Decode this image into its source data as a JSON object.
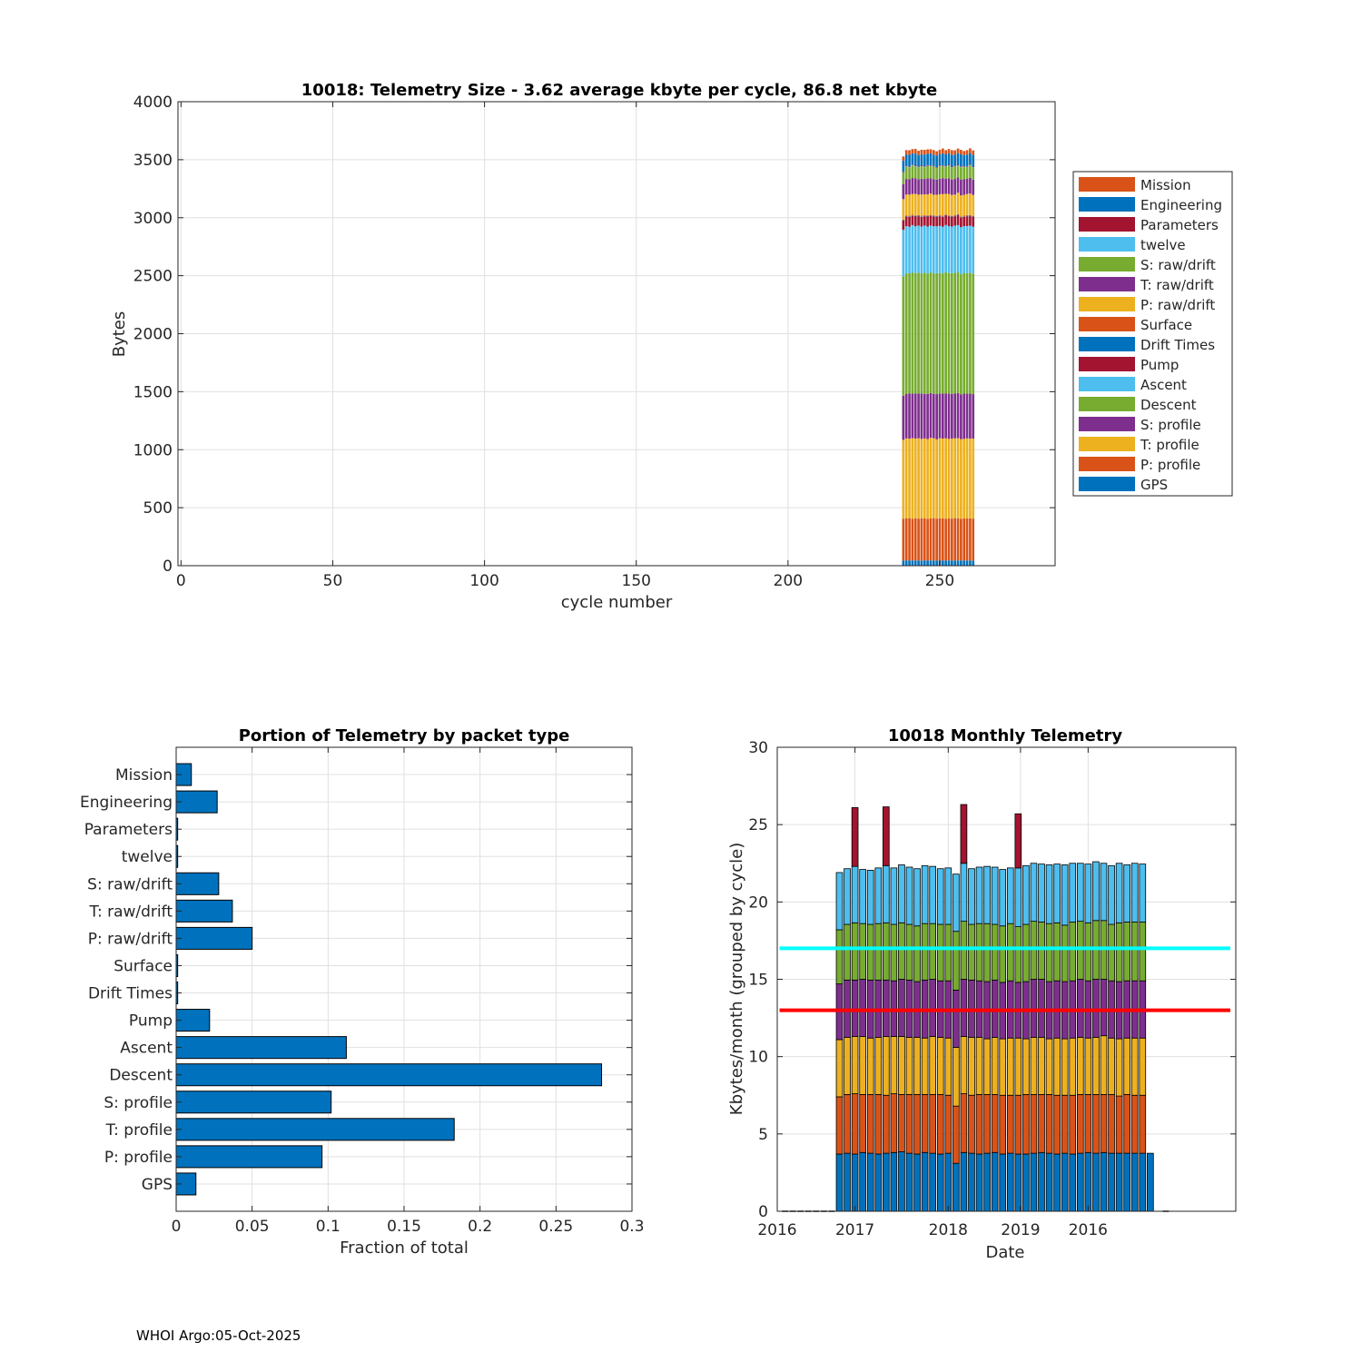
{
  "colors": {
    "mission": "#D95319",
    "engineering": "#0072BD",
    "parameters": "#A2142F",
    "twelve": "#4DBEEE",
    "s_raw_drift": "#77AC30",
    "t_raw_drift": "#7E2F8E",
    "p_raw_drift": "#EDB120",
    "surface": "#D95319",
    "drift_times": "#0072BD",
    "pump": "#A2142F",
    "ascent": "#4DBEEE",
    "descent": "#77AC30",
    "s_profile": "#7E2F8E",
    "t_profile": "#EDB120",
    "p_profile": "#D95319",
    "gps": "#0072BD",
    "bar_blue": "#0072BD",
    "line_cyan": "#00FFFF",
    "line_red": "#FF0000"
  },
  "chart_data": [
    {
      "type": "bar",
      "stacked": true,
      "title": "10018: Telemetry Size - 3.62 average kbyte per cycle,   86.8 net kbyte",
      "xlabel": "cycle number",
      "ylabel": "Bytes",
      "xlim": [
        -1,
        288
      ],
      "ylim": [
        0,
        4000
      ],
      "xticks": [
        0,
        50,
        100,
        150,
        200,
        250
      ],
      "yticks": [
        0,
        500,
        1000,
        1500,
        2000,
        2500,
        3000,
        3500,
        4000
      ],
      "grid": true,
      "legend_position": "right",
      "x": [
        238,
        239,
        240,
        241,
        242,
        243,
        244,
        245,
        246,
        247,
        248,
        249,
        250,
        251,
        252,
        253,
        254,
        255,
        256,
        257,
        258,
        259,
        260,
        261
      ],
      "series_order": [
        "GPS",
        "P: profile",
        "T: profile",
        "S: profile",
        "Descent",
        "Ascent",
        "Pump",
        "Drift Times",
        "Surface",
        "P: raw/drift",
        "T: raw/drift",
        "S: raw/drift",
        "twelve",
        "Parameters",
        "Engineering",
        "Mission"
      ],
      "series": [
        {
          "name": "GPS",
          "values": [
            45,
            45,
            45,
            45,
            45,
            45,
            45,
            45,
            45,
            45,
            45,
            45,
            45,
            45,
            45,
            45,
            45,
            45,
            45,
            45,
            45,
            45,
            45,
            45
          ]
        },
        {
          "name": "P: profile",
          "values": [
            360,
            362,
            365,
            360,
            363,
            361,
            364,
            362,
            360,
            363,
            365,
            361,
            362,
            364,
            360,
            363,
            361,
            365,
            362,
            360,
            364,
            362,
            363,
            361
          ]
        },
        {
          "name": "T: profile",
          "values": [
            680,
            690,
            685,
            695,
            688,
            692,
            684,
            690,
            686,
            694,
            689,
            683,
            691,
            687,
            693,
            685,
            690,
            688,
            692,
            686,
            684,
            690,
            687,
            689
          ]
        },
        {
          "name": "S: profile",
          "values": [
            380,
            385,
            390,
            383,
            388,
            386,
            392,
            384,
            389,
            387,
            383,
            390,
            385,
            388,
            386,
            391,
            384,
            387,
            389,
            385,
            390,
            386,
            388,
            384
          ]
        },
        {
          "name": "Descent",
          "values": [
            1030,
            1040,
            1035,
            1045,
            1038,
            1042,
            1036,
            1044,
            1039,
            1041,
            1037,
            1043,
            1040,
            1035,
            1046,
            1038,
            1042,
            1039,
            1044,
            1036,
            1041,
            1038,
            1043,
            1040
          ]
        },
        {
          "name": "Ascent",
          "values": [
            400,
            405,
            402,
            408,
            404,
            406,
            403,
            407,
            405,
            402,
            408,
            404,
            406,
            403,
            407,
            405,
            402,
            408,
            404,
            406,
            403,
            407,
            405,
            404
          ]
        },
        {
          "name": "Pump",
          "values": [
            80,
            82,
            85,
            80,
            84,
            81,
            83,
            80,
            86,
            82,
            84,
            80,
            83,
            85,
            81,
            84,
            82,
            80,
            85,
            83,
            81,
            84,
            82,
            83
          ]
        },
        {
          "name": "Drift Times",
          "values": [
            4,
            4,
            4,
            4,
            4,
            4,
            4,
            4,
            4,
            4,
            4,
            4,
            4,
            4,
            4,
            4,
            4,
            4,
            4,
            4,
            4,
            4,
            4,
            4
          ]
        },
        {
          "name": "Surface",
          "values": [
            6,
            6,
            6,
            6,
            6,
            6,
            6,
            6,
            6,
            6,
            6,
            6,
            6,
            6,
            6,
            6,
            6,
            6,
            6,
            6,
            6,
            6,
            6,
            6
          ]
        },
        {
          "name": "P: raw/drift",
          "values": [
            175,
            180,
            182,
            178,
            185,
            176,
            183,
            179,
            181,
            184,
            177,
            182,
            180,
            186,
            178,
            183,
            180,
            177,
            184,
            181,
            179,
            182,
            185,
            180
          ]
        },
        {
          "name": "T: raw/drift",
          "values": [
            130,
            135,
            132,
            138,
            134,
            131,
            136,
            133,
            137,
            132,
            135,
            130,
            134,
            138,
            131,
            136,
            133,
            135,
            132,
            137,
            134,
            131,
            136,
            133
          ]
        },
        {
          "name": "S: raw/drift",
          "values": [
            100,
            105,
            103,
            108,
            102,
            106,
            104,
            101,
            107,
            103,
            105,
            100,
            106,
            104,
            102,
            108,
            103,
            105,
            101,
            106,
            104,
            102,
            107,
            104
          ]
        },
        {
          "name": "twelve",
          "values": [
            3,
            3,
            3,
            3,
            3,
            3,
            3,
            3,
            3,
            3,
            3,
            3,
            3,
            3,
            3,
            3,
            3,
            3,
            3,
            3,
            3,
            3,
            3,
            3
          ]
        },
        {
          "name": "Parameters",
          "values": [
            5,
            5,
            5,
            5,
            5,
            5,
            5,
            5,
            5,
            5,
            5,
            5,
            5,
            5,
            5,
            5,
            5,
            5,
            5,
            5,
            5,
            5,
            5,
            5
          ]
        },
        {
          "name": "Engineering",
          "values": [
            95,
            98,
            100,
            97,
            102,
            96,
            99,
            101,
            98,
            103,
            97,
            100,
            96,
            102,
            99,
            98,
            101,
            97,
            100,
            103,
            96,
            99,
            98,
            100
          ]
        },
        {
          "name": "Mission",
          "values": [
            35,
            38,
            40,
            36,
            42,
            37,
            39,
            41,
            38,
            36,
            40,
            37,
            39,
            42,
            36,
            38,
            41,
            37,
            40,
            39,
            36,
            38,
            41,
            39
          ]
        }
      ],
      "legend": [
        "Mission",
        "Engineering",
        "Parameters",
        "twelve",
        "S: raw/drift",
        "T: raw/drift",
        "P: raw/drift",
        "Surface",
        "Drift Times",
        "Pump",
        "Ascent",
        "Descent",
        "S: profile",
        "T: profile",
        "P: profile",
        "GPS"
      ]
    },
    {
      "type": "bar",
      "orientation": "horizontal",
      "title": "Portion of Telemetry by packet type",
      "xlabel": "Fraction of total",
      "ylabel": "",
      "xlim": [
        0,
        0.3
      ],
      "xticks": [
        0,
        0.05,
        0.1,
        0.15,
        0.2,
        0.25,
        0.3
      ],
      "xtick_labels": [
        "0",
        "0.05",
        "0.1",
        "0.15",
        "0.2",
        "0.25",
        "0.3"
      ],
      "grid": true,
      "categories": [
        "Mission",
        "Engineering",
        "Parameters",
        "twelve",
        "S: raw/drift",
        "T: raw/drift",
        "P: raw/drift",
        "Surface",
        "Drift Times",
        "Pump",
        "Ascent",
        "Descent",
        "S: profile",
        "T: profile",
        "P: profile",
        "GPS"
      ],
      "values": [
        0.01,
        0.027,
        0.001,
        0.001,
        0.028,
        0.037,
        0.05,
        0.001,
        0.001,
        0.022,
        0.112,
        0.28,
        0.102,
        0.183,
        0.096,
        0.013
      ]
    },
    {
      "type": "bar",
      "stacked": true,
      "title": "10018 Monthly Telemetry",
      "xlabel": "Date",
      "ylabel": "Kbytes/month (grouped by cycle)",
      "ylim": [
        0,
        30
      ],
      "yticks": [
        0,
        5,
        10,
        15,
        20,
        25,
        30
      ],
      "xlim": [
        0,
        59
      ],
      "xticks": [
        0,
        10,
        22,
        31,
        40,
        50
      ],
      "xtick_labels": [
        "2016",
        "2017",
        "2018",
        "2019",
        "2016"
      ],
      "xtick_label_positions": [
        0,
        10,
        22,
        31.3,
        40
      ],
      "grid": true,
      "reference_lines": [
        {
          "name": "cyan",
          "value": 17
        },
        {
          "name": "red",
          "value": 13
        }
      ],
      "zero_bars": [
        1,
        2,
        3,
        4,
        5,
        6,
        7,
        50
      ],
      "x": [
        8,
        9,
        10,
        11,
        12,
        13,
        14,
        15,
        16,
        17,
        18,
        19,
        20,
        21,
        22,
        23,
        24,
        25,
        26,
        27,
        28,
        29,
        30,
        31,
        32,
        33,
        34,
        35,
        36,
        37,
        38,
        39,
        40,
        41,
        42,
        43,
        44,
        45,
        46,
        47,
        48
      ],
      "series_order": [
        "GPS",
        "P: profile",
        "T: profile",
        "S: profile",
        "Descent",
        "Ascent",
        "Pump"
      ],
      "series": [
        {
          "name": "GPS",
          "values": [
            3.7,
            3.75,
            3.7,
            3.8,
            3.75,
            3.7,
            3.75,
            3.8,
            3.85,
            3.75,
            3.7,
            3.8,
            3.75,
            3.7,
            3.75,
            3.1,
            3.8,
            3.75,
            3.7,
            3.75,
            3.8,
            3.7,
            3.75,
            3.7,
            3.7,
            3.75,
            3.8,
            3.75,
            3.7,
            3.75,
            3.7,
            3.75,
            3.8,
            3.75,
            3.8,
            3.75,
            3.75,
            3.75,
            3.75,
            3.75,
            3.75
          ]
        },
        {
          "name": "P: profile",
          "values": [
            3.7,
            3.8,
            3.9,
            3.75,
            3.8,
            3.85,
            3.75,
            3.8,
            3.7,
            3.8,
            3.85,
            3.75,
            3.8,
            3.85,
            3.75,
            3.7,
            3.8,
            3.75,
            3.85,
            3.8,
            3.75,
            3.8,
            3.75,
            3.8,
            3.85,
            3.8,
            3.75,
            3.8,
            3.8,
            3.75,
            3.8,
            3.8,
            3.75,
            3.8,
            3.75,
            3.8,
            3.7,
            3.8,
            3.75,
            3.75,
            0
          ]
        },
        {
          "name": "T: profile",
          "values": [
            3.7,
            3.7,
            3.7,
            3.75,
            3.65,
            3.7,
            3.8,
            3.7,
            3.75,
            3.7,
            3.7,
            3.65,
            3.75,
            3.7,
            3.7,
            3.8,
            3.7,
            3.75,
            3.7,
            3.6,
            3.7,
            3.65,
            3.7,
            3.7,
            3.6,
            3.7,
            3.7,
            3.6,
            3.7,
            3.65,
            3.7,
            3.7,
            3.65,
            3.7,
            3.8,
            3.65,
            3.7,
            3.65,
            3.7,
            3.7,
            0
          ]
        },
        {
          "name": "S: profile",
          "values": [
            3.6,
            3.7,
            3.65,
            3.7,
            3.75,
            3.7,
            3.65,
            3.6,
            3.7,
            3.7,
            3.6,
            3.75,
            3.7,
            3.65,
            3.7,
            3.7,
            3.7,
            3.7,
            3.65,
            3.7,
            3.7,
            3.65,
            3.7,
            3.6,
            3.7,
            3.75,
            3.75,
            3.7,
            3.7,
            3.7,
            3.7,
            3.75,
            3.7,
            3.75,
            3.65,
            3.7,
            3.7,
            3.7,
            3.7,
            3.7,
            0
          ]
        },
        {
          "name": "Descent",
          "values": [
            3.5,
            3.6,
            3.7,
            3.6,
            3.6,
            3.65,
            3.7,
            3.65,
            3.65,
            3.6,
            3.6,
            3.65,
            3.6,
            3.65,
            3.65,
            3.8,
            3.75,
            3.6,
            3.7,
            3.75,
            3.6,
            3.65,
            3.7,
            3.6,
            3.7,
            3.75,
            3.7,
            3.75,
            3.75,
            3.65,
            3.8,
            3.75,
            3.75,
            3.8,
            3.8,
            3.65,
            3.8,
            3.8,
            3.8,
            3.8,
            0
          ]
        },
        {
          "name": "Ascent",
          "values": [
            3.7,
            3.6,
            3.65,
            3.5,
            3.5,
            3.6,
            3.7,
            3.65,
            3.75,
            3.7,
            3.7,
            3.75,
            3.7,
            3.6,
            3.65,
            3.7,
            3.75,
            3.6,
            3.65,
            3.7,
            3.7,
            3.65,
            3.6,
            3.8,
            3.8,
            3.75,
            3.75,
            3.8,
            3.8,
            3.9,
            3.8,
            3.75,
            3.8,
            3.8,
            3.7,
            3.8,
            3.85,
            3.7,
            3.8,
            3.75,
            0
          ]
        },
        {
          "name": "Pump",
          "values": [
            0,
            0,
            3.8,
            0,
            0,
            0,
            3.8,
            0,
            0,
            0,
            0,
            0,
            0,
            0,
            0,
            0,
            3.8,
            0,
            0,
            0,
            0,
            0,
            0,
            3.5,
            0,
            0,
            0,
            0,
            0,
            0,
            0,
            0,
            0,
            0,
            0,
            0,
            0,
            0,
            0,
            0,
            0
          ]
        }
      ]
    }
  ],
  "footer": "WHOI Argo:05-Oct-2025"
}
